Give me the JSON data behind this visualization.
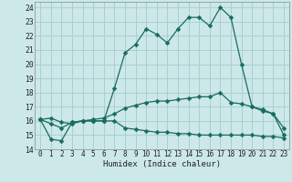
{
  "title": "",
  "xlabel": "Humidex (Indice chaleur)",
  "xlim": [
    -0.5,
    23.5
  ],
  "ylim": [
    14,
    24.4
  ],
  "yticks": [
    14,
    15,
    16,
    17,
    18,
    19,
    20,
    21,
    22,
    23,
    24
  ],
  "xticks": [
    0,
    1,
    2,
    3,
    4,
    5,
    6,
    7,
    8,
    9,
    10,
    11,
    12,
    13,
    14,
    15,
    16,
    17,
    18,
    19,
    20,
    21,
    22,
    23
  ],
  "bg_color": "#cce8e8",
  "grid_color": "#aad0d0",
  "line_color": "#1a6b5e",
  "series": {
    "max": [
      16.1,
      16.2,
      15.9,
      15.8,
      16.0,
      16.0,
      16.0,
      18.3,
      20.8,
      21.4,
      22.5,
      22.1,
      21.5,
      22.5,
      23.3,
      23.3,
      22.7,
      24.0,
      23.3,
      20.0,
      17.0,
      16.7,
      16.5,
      15.0
    ],
    "mean": [
      16.1,
      15.8,
      15.5,
      15.9,
      16.0,
      16.1,
      16.2,
      16.5,
      16.9,
      17.1,
      17.3,
      17.4,
      17.4,
      17.5,
      17.6,
      17.7,
      17.7,
      18.0,
      17.3,
      17.2,
      17.0,
      16.8,
      16.5,
      15.5
    ],
    "min": [
      16.1,
      14.7,
      14.6,
      15.9,
      16.0,
      16.0,
      16.0,
      16.0,
      15.5,
      15.4,
      15.3,
      15.2,
      15.2,
      15.1,
      15.1,
      15.0,
      15.0,
      15.0,
      15.0,
      15.0,
      15.0,
      14.9,
      14.9,
      14.8
    ]
  },
  "marker": "D",
  "markersize": 2.5,
  "linewidth": 0.9
}
